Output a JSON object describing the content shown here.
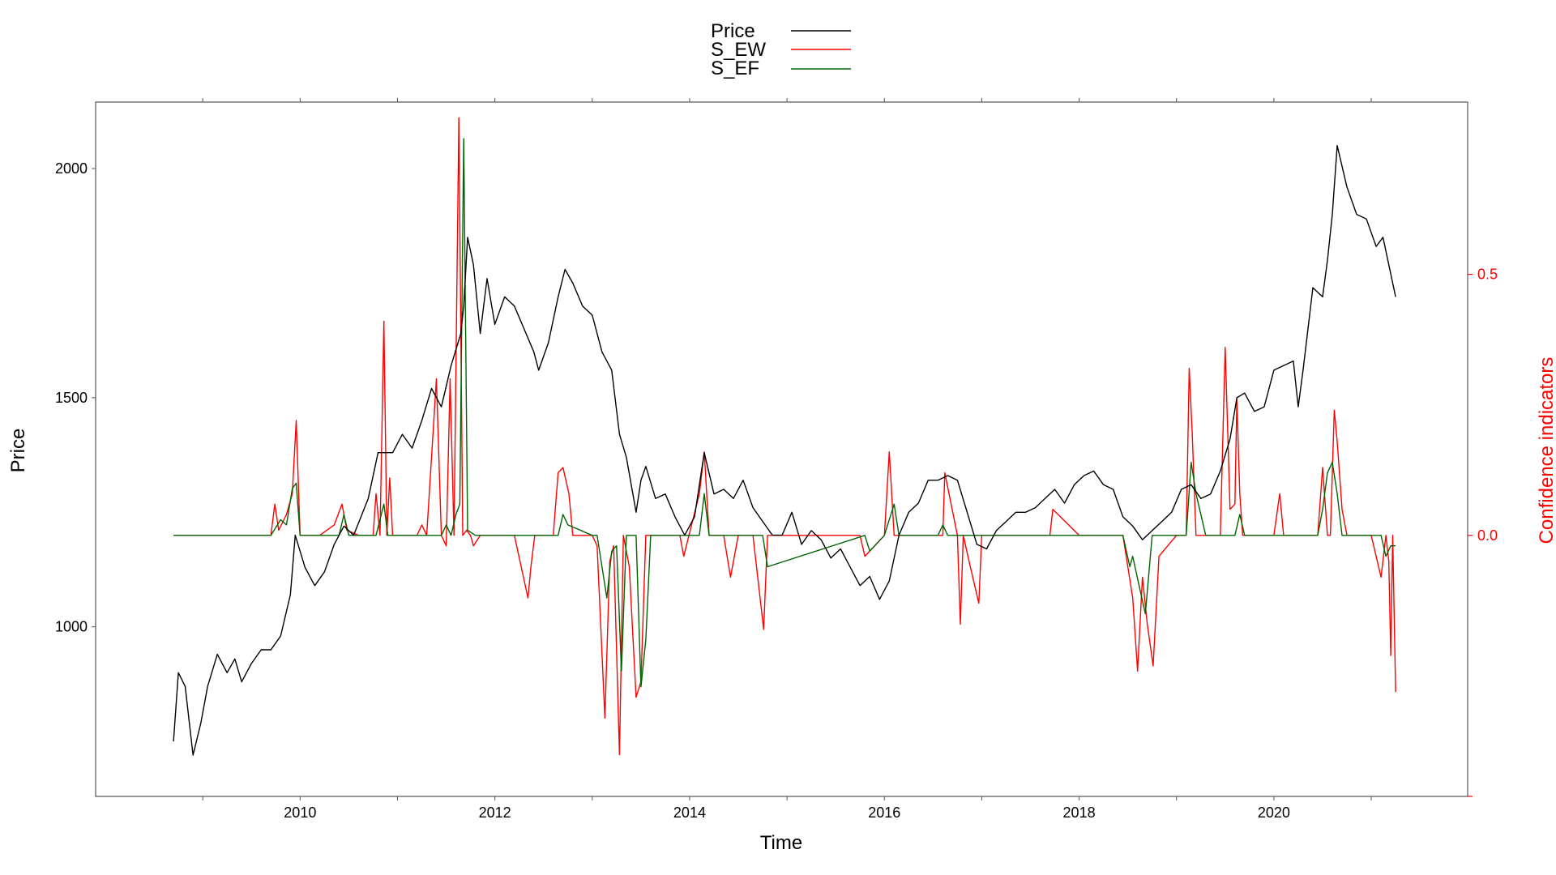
{
  "chart_data": {
    "type": "line",
    "xlabel": "Time",
    "ylabel": "Price",
    "y2label": "Confidence indicators",
    "x_ticks": [
      "2010",
      "2012",
      "2014",
      "2016",
      "2018",
      "2020"
    ],
    "x_tick_values": [
      2010,
      2012,
      2014,
      2016,
      2018,
      2020
    ],
    "xlim": [
      2007.9,
      2021.99
    ],
    "y_ticks": [
      "1000",
      "1500",
      "2000"
    ],
    "y_tick_values": [
      1000,
      1500,
      2000
    ],
    "ylim": [
      630,
      2145
    ],
    "y2_ticks": [
      "0.0",
      "0.5"
    ],
    "y2_tick_values": [
      0.0,
      0.5
    ],
    "y2lim": [
      -0.5,
      0.83
    ],
    "legend": {
      "position": "top-center",
      "entries": [
        {
          "name": "Price",
          "color": "#000000"
        },
        {
          "name": "S_EW",
          "color": "#ff0000"
        },
        {
          "name": "S_EF",
          "color": "#006400"
        }
      ]
    },
    "colors": {
      "price": "#000000",
      "s_ew": "#ff0000",
      "s_ef": "#006400",
      "right_axis": "#ff0000",
      "frame": "#555555"
    },
    "series": [
      {
        "name": "Price",
        "axis": "left",
        "x": [
          2008.7,
          2008.75,
          2008.82,
          2008.9,
          2008.98,
          2009.05,
          2009.15,
          2009.2,
          2009.25,
          2009.33,
          2009.4,
          2009.5,
          2009.6,
          2009.7,
          2009.8,
          2009.9,
          2009.95,
          2010.05,
          2010.15,
          2010.25,
          2010.35,
          2010.45,
          2010.55,
          2010.7,
          2010.8,
          2010.95,
          2011.05,
          2011.15,
          2011.25,
          2011.35,
          2011.45,
          2011.55,
          2011.65,
          2011.68,
          2011.72,
          2011.78,
          2011.85,
          2011.92,
          2012.0,
          2012.1,
          2012.2,
          2012.3,
          2012.4,
          2012.45,
          2012.55,
          2012.65,
          2012.72,
          2012.8,
          2012.9,
          2013.0,
          2013.1,
          2013.2,
          2013.28,
          2013.35,
          2013.45,
          2013.5,
          2013.55,
          2013.65,
          2013.75,
          2013.85,
          2013.95,
          2014.05,
          2014.15,
          2014.25,
          2014.35,
          2014.45,
          2014.55,
          2014.65,
          2014.75,
          2014.85,
          2014.95,
          2015.05,
          2015.15,
          2015.25,
          2015.35,
          2015.45,
          2015.55,
          2015.65,
          2015.75,
          2015.85,
          2015.95,
          2016.05,
          2016.15,
          2016.25,
          2016.35,
          2016.45,
          2016.55,
          2016.65,
          2016.75,
          2016.85,
          2016.95,
          2017.05,
          2017.15,
          2017.25,
          2017.35,
          2017.45,
          2017.55,
          2017.65,
          2017.75,
          2017.85,
          2017.95,
          2018.05,
          2018.15,
          2018.25,
          2018.35,
          2018.45,
          2018.55,
          2018.65,
          2018.75,
          2018.85,
          2018.95,
          2019.05,
          2019.15,
          2019.25,
          2019.35,
          2019.45,
          2019.55,
          2019.62,
          2019.7,
          2019.8,
          2019.9,
          2020.0,
          2020.1,
          2020.2,
          2020.25,
          2020.3,
          2020.4,
          2020.5,
          2020.55,
          2020.6,
          2020.65,
          2020.75,
          2020.85,
          2020.95,
          2021.05,
          2021.12,
          2021.18,
          2021.25
        ],
        "values": [
          750,
          900,
          870,
          720,
          790,
          870,
          940,
          920,
          900,
          930,
          880,
          920,
          950,
          950,
          980,
          1070,
          1200,
          1130,
          1090,
          1120,
          1180,
          1220,
          1200,
          1280,
          1380,
          1380,
          1420,
          1390,
          1450,
          1520,
          1480,
          1570,
          1640,
          1700,
          1850,
          1790,
          1640,
          1760,
          1660,
          1720,
          1700,
          1650,
          1600,
          1560,
          1620,
          1720,
          1780,
          1750,
          1700,
          1680,
          1600,
          1560,
          1420,
          1370,
          1250,
          1320,
          1350,
          1280,
          1290,
          1240,
          1200,
          1240,
          1380,
          1290,
          1300,
          1280,
          1320,
          1260,
          1230,
          1200,
          1200,
          1250,
          1180,
          1210,
          1190,
          1150,
          1170,
          1130,
          1090,
          1110,
          1060,
          1100,
          1200,
          1250,
          1270,
          1320,
          1320,
          1330,
          1320,
          1250,
          1180,
          1170,
          1210,
          1230,
          1250,
          1250,
          1260,
          1280,
          1300,
          1270,
          1310,
          1330,
          1340,
          1310,
          1300,
          1240,
          1220,
          1190,
          1210,
          1230,
          1250,
          1300,
          1310,
          1280,
          1290,
          1340,
          1410,
          1500,
          1510,
          1470,
          1480,
          1560,
          1570,
          1580,
          1480,
          1560,
          1740,
          1720,
          1800,
          1900,
          2050,
          1960,
          1900,
          1890,
          1830,
          1850,
          1790,
          1720
        ]
      },
      {
        "name": "S_EW",
        "axis": "right",
        "x": [
          2008.7,
          2009.7,
          2009.74,
          2009.78,
          2009.86,
          2009.92,
          2009.96,
          2010.0,
          2010.2,
          2010.35,
          2010.43,
          2010.48,
          2010.6,
          2010.75,
          2010.78,
          2010.82,
          2010.86,
          2010.89,
          2010.92,
          2010.95,
          2010.99,
          2011.2,
          2011.25,
          2011.3,
          2011.4,
          2011.45,
          2011.5,
          2011.54,
          2011.58,
          2011.63,
          2011.67,
          2011.71,
          2011.75,
          2011.78,
          2011.85,
          2012.2,
          2012.34,
          2012.37,
          2012.41,
          2012.6,
          2012.65,
          2012.7,
          2012.76,
          2012.8,
          2013.0,
          2013.05,
          2013.13,
          2013.18,
          2013.22,
          2013.28,
          2013.32,
          2013.38,
          2013.45,
          2013.5,
          2013.55,
          2013.6,
          2013.7,
          2013.9,
          2013.94,
          2014.1,
          2014.15,
          2014.2,
          2014.35,
          2014.42,
          2014.5,
          2014.65,
          2014.76,
          2014.8,
          2014.9,
          2015.1,
          2015.5,
          2015.75,
          2015.8,
          2016.0,
          2016.05,
          2016.1,
          2016.15,
          2016.2,
          2016.4,
          2016.6,
          2016.62,
          2016.75,
          2016.78,
          2016.81,
          2016.87,
          2016.92,
          2016.97,
          2017.0,
          2017.5,
          2017.7,
          2017.73,
          2018.0,
          2018.45,
          2018.55,
          2018.6,
          2018.65,
          2018.7,
          2018.76,
          2018.82,
          2019.0,
          2019.1,
          2019.13,
          2019.16,
          2019.2,
          2019.3,
          2019.45,
          2019.5,
          2019.55,
          2019.6,
          2019.62,
          2019.65,
          2019.68,
          2019.72,
          2019.8,
          2020.0,
          2020.06,
          2020.1,
          2020.45,
          2020.5,
          2020.55,
          2020.58,
          2020.62,
          2020.65,
          2020.7,
          2020.75,
          2021.0,
          2021.1,
          2021.15,
          2021.18,
          2021.2,
          2021.22,
          2021.25
        ],
        "values": [
          0.0,
          0.0,
          0.06,
          0.01,
          0.04,
          0.08,
          0.22,
          0.0,
          0.0,
          0.02,
          0.06,
          0.01,
          0.0,
          0.0,
          0.08,
          0.0,
          0.41,
          0.0,
          0.11,
          0.0,
          0.0,
          0.0,
          0.02,
          0.0,
          0.3,
          0.0,
          -0.02,
          0.3,
          0.0,
          0.8,
          0.0,
          0.01,
          0.0,
          -0.02,
          0.0,
          0.0,
          -0.12,
          -0.06,
          0.0,
          0.0,
          0.12,
          0.13,
          0.08,
          0.0,
          0.0,
          -0.02,
          -0.35,
          -0.05,
          -0.02,
          -0.42,
          0.0,
          -0.06,
          -0.31,
          -0.28,
          0.0,
          0.0,
          0.0,
          0.0,
          -0.04,
          0.08,
          0.16,
          0.0,
          0.0,
          -0.08,
          0.0,
          0.0,
          -0.18,
          0.0,
          0.0,
          0.0,
          0.0,
          0.0,
          -0.04,
          0.0,
          0.16,
          0.0,
          0.0,
          0.0,
          0.0,
          0.0,
          0.12,
          0.0,
          -0.17,
          0.0,
          -0.05,
          -0.09,
          -0.13,
          0.0,
          0.0,
          0.0,
          0.05,
          0.0,
          0.0,
          -0.12,
          -0.26,
          -0.08,
          -0.17,
          -0.25,
          -0.04,
          0.0,
          0.0,
          0.32,
          0.2,
          0.0,
          0.0,
          0.0,
          0.36,
          0.05,
          0.06,
          0.26,
          0.08,
          0.0,
          0.0,
          0.0,
          0.0,
          0.08,
          0.0,
          0.0,
          0.13,
          0.0,
          0.0,
          0.24,
          0.18,
          0.05,
          0.0,
          0.0,
          -0.08,
          0.0,
          -0.05,
          -0.23,
          0.0,
          -0.3
        ]
      },
      {
        "name": "S_EF",
        "axis": "right",
        "x": [
          2008.7,
          2009.7,
          2009.8,
          2009.86,
          2009.92,
          2009.96,
          2010.0,
          2010.4,
          2010.45,
          2010.5,
          2010.78,
          2010.86,
          2010.9,
          2011.45,
          2011.5,
          2011.55,
          2011.6,
          2011.64,
          2011.68,
          2011.72,
          2011.8,
          2012.0,
          2012.65,
          2012.7,
          2012.75,
          2013.0,
          2013.05,
          2013.15,
          2013.2,
          2013.25,
          2013.3,
          2013.35,
          2013.45,
          2013.5,
          2013.55,
          2013.6,
          2014.1,
          2014.15,
          2014.2,
          2014.75,
          2014.8,
          2015.8,
          2015.85,
          2016.0,
          2016.1,
          2016.15,
          2016.55,
          2016.6,
          2016.65,
          2018.45,
          2018.52,
          2018.55,
          2018.62,
          2018.68,
          2018.75,
          2019.1,
          2019.15,
          2019.2,
          2019.3,
          2019.6,
          2019.65,
          2019.7,
          2020.45,
          2020.5,
          2020.55,
          2020.6,
          2020.65,
          2020.7,
          2021.1,
          2021.15,
          2021.2,
          2021.25
        ],
        "values": [
          0.0,
          0.0,
          0.03,
          0.02,
          0.09,
          0.1,
          0.0,
          0.0,
          0.04,
          0.0,
          0.0,
          0.06,
          0.0,
          0.0,
          0.02,
          0.0,
          0.04,
          0.06,
          0.76,
          0.01,
          0.0,
          0.0,
          0.0,
          0.04,
          0.02,
          0.0,
          0.0,
          -0.12,
          -0.03,
          -0.02,
          -0.26,
          0.0,
          0.0,
          -0.29,
          -0.2,
          0.0,
          0.0,
          0.08,
          0.0,
          0.0,
          -0.06,
          0.0,
          -0.03,
          0.0,
          0.06,
          0.0,
          0.0,
          0.02,
          0.0,
          0.0,
          -0.06,
          -0.04,
          -0.1,
          -0.15,
          0.0,
          0.0,
          0.14,
          0.08,
          0.0,
          0.0,
          0.04,
          0.0,
          0.0,
          0.05,
          0.12,
          0.14,
          0.08,
          0.0,
          0.0,
          -0.04,
          -0.02,
          -0.02
        ]
      }
    ]
  }
}
